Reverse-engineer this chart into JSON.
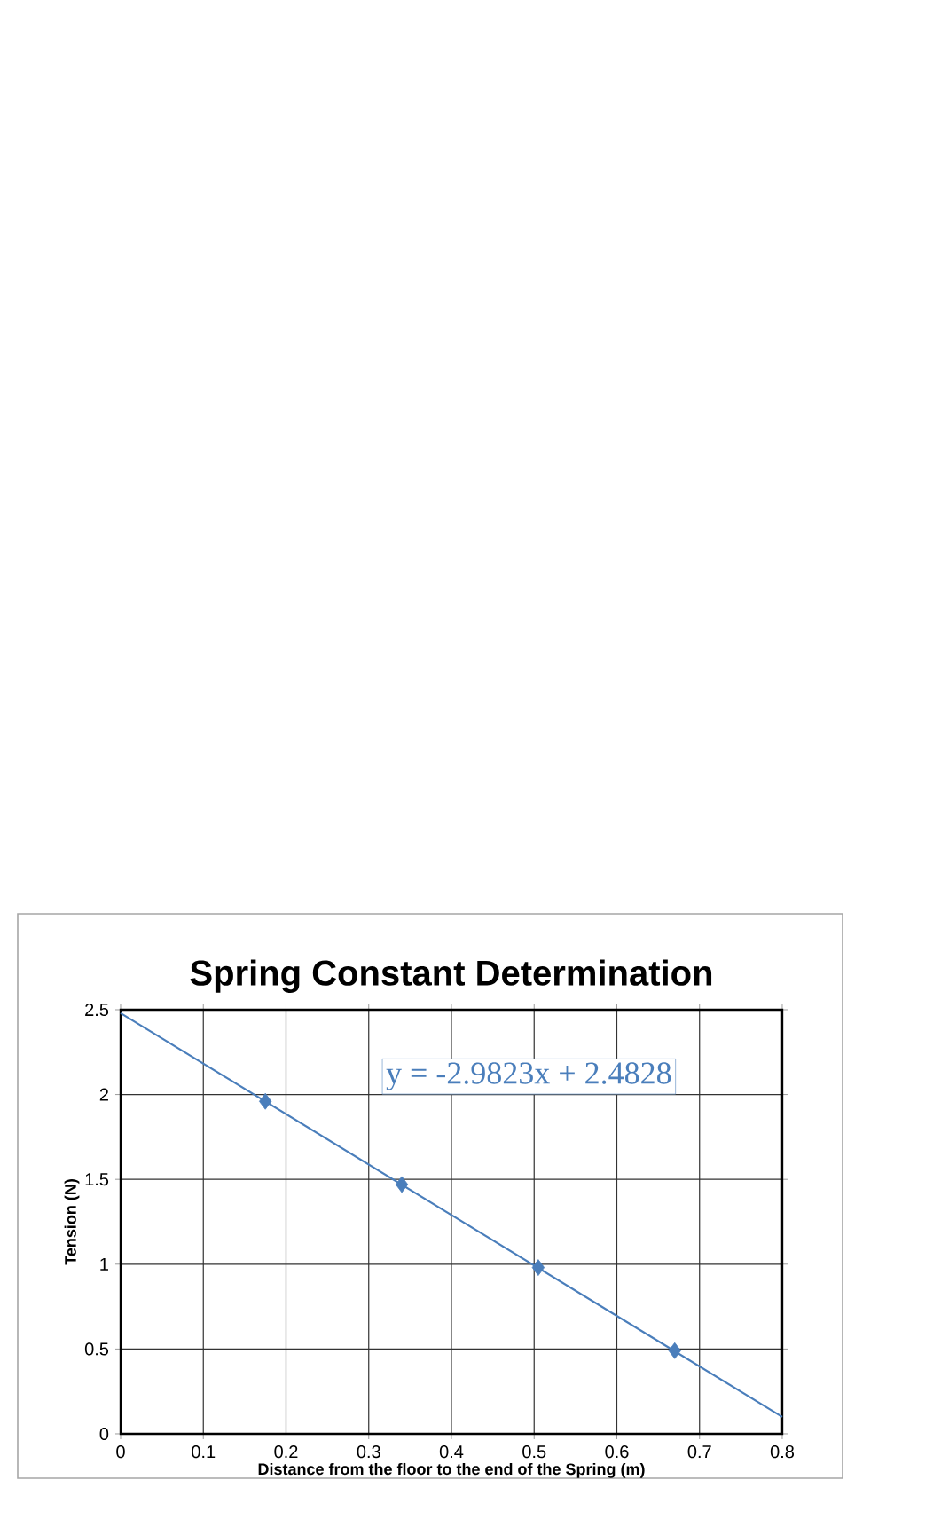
{
  "chart_data": {
    "type": "scatter",
    "title": "Spring Constant Determination",
    "xlabel": "Distance from the floor to the end of the Spring (m)",
    "ylabel": "Tension (N)",
    "series": [
      {
        "marker": "diamond",
        "color": "#4a7ebb",
        "x": [
          0.175,
          0.34,
          0.505,
          0.67
        ],
        "values": [
          1.96,
          1.47,
          0.98,
          0.49
        ]
      },
      {
        "type": "line",
        "marker": "none",
        "line_style": "solid",
        "color": "#4a7ebb",
        "x": [
          0,
          0.8
        ],
        "values": [
          2.48,
          0.1
        ]
      }
    ],
    "annotations": [
      "y = -2.9823x + 2.4828"
    ],
    "xlim": [
      0,
      0.8
    ],
    "ylim": [
      0,
      2.5
    ],
    "xticks": [
      0,
      0.1,
      0.2,
      0.3,
      0.4,
      0.5,
      0.6,
      0.7,
      0.8
    ],
    "yticks": [
      0,
      0.5,
      1,
      1.5,
      2,
      2.5
    ],
    "grid": true
  }
}
